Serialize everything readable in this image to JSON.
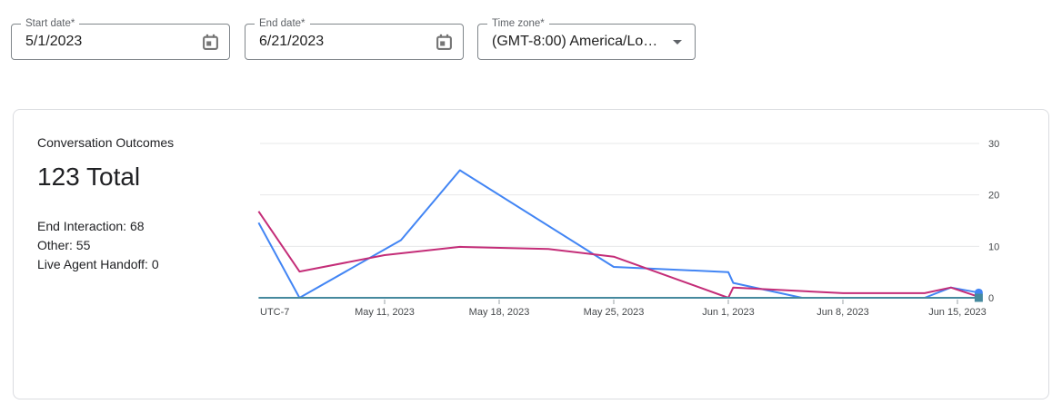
{
  "filters": {
    "start_date": {
      "label": "Start date*",
      "value": "5/1/2023"
    },
    "end_date": {
      "label": "End date*",
      "value": "6/21/2023"
    },
    "time_zone": {
      "label": "Time zone*",
      "value": "(GMT-8:00) America/Lo…"
    }
  },
  "card": {
    "title": "Conversation Outcomes",
    "total": "123 Total",
    "stats": [
      {
        "label": "End Interaction",
        "value": 68,
        "text": "End Interaction: 68"
      },
      {
        "label": "Other",
        "value": 55,
        "text": "Other: 55"
      },
      {
        "label": "Live Agent Handoff",
        "value": 0,
        "text": "Live Agent Handoff: 0"
      }
    ]
  },
  "chart_data": {
    "type": "line",
    "title": "Conversation Outcomes",
    "x_unit": "days since 2023-05-01",
    "x_axis": {
      "note": "UTC-7",
      "ticks": [
        {
          "day": 10,
          "label": "May 11, 2023"
        },
        {
          "day": 17,
          "label": "May 18, 2023"
        },
        {
          "day": 24,
          "label": "May 25, 2023"
        },
        {
          "day": 31,
          "label": "Jun 1, 2023"
        },
        {
          "day": 38,
          "label": "Jun 8, 2023"
        },
        {
          "day": 45,
          "label": "Jun 15, 2023"
        }
      ]
    },
    "y_axis": {
      "position": "right",
      "range": [
        0,
        30
      ],
      "ticks": [
        0,
        10,
        20,
        30
      ]
    },
    "grid": true,
    "legend": "none",
    "series": [
      {
        "name": "End Interaction",
        "total": 68,
        "color": "#4285F4",
        "marker": "circle",
        "points": [
          [
            2.3,
            14.6
          ],
          [
            4.8,
            0
          ],
          [
            11,
            11.2
          ],
          [
            14.6,
            24.8
          ],
          [
            24,
            6
          ],
          [
            31,
            5
          ],
          [
            31.3,
            2.9
          ],
          [
            35.5,
            0
          ],
          [
            43,
            0
          ],
          [
            44.6,
            2
          ],
          [
            46.3,
            1
          ]
        ]
      },
      {
        "name": "Other",
        "total": 55,
        "color": "#C42D78",
        "marker": null,
        "points": [
          [
            2.3,
            16.8
          ],
          [
            4.8,
            5.1
          ],
          [
            10,
            8.3
          ],
          [
            14.6,
            9.9
          ],
          [
            20,
            9.5
          ],
          [
            24,
            8
          ],
          [
            31,
            0
          ],
          [
            31.3,
            2
          ],
          [
            38,
            0.9
          ],
          [
            43,
            0.9
          ],
          [
            44.6,
            2
          ],
          [
            46.3,
            0.2
          ]
        ]
      },
      {
        "name": "Live Agent Handoff",
        "total": 0,
        "color": "#45899E",
        "marker": "square",
        "points": [
          [
            2.3,
            0
          ],
          [
            46.3,
            0
          ]
        ]
      }
    ],
    "colors": {
      "grid": "#e7e8ea",
      "axis_text": "#46494c",
      "tick": "#9aa0a6"
    }
  }
}
